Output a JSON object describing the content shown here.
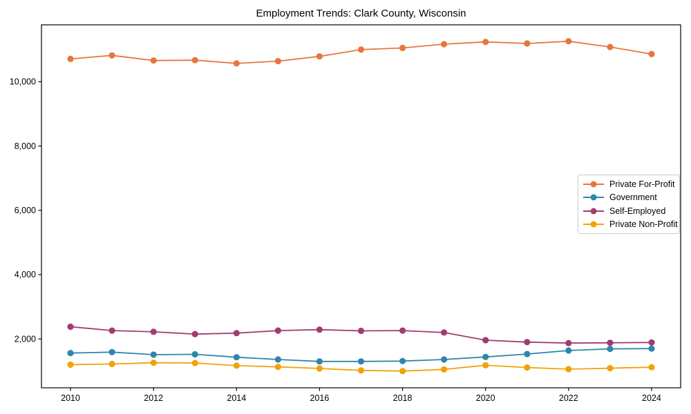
{
  "chart_data": {
    "type": "line",
    "title": "Employment Trends: Clark County, Wisconsin",
    "xlabel": "",
    "ylabel": "",
    "x": [
      2010,
      2011,
      2012,
      2013,
      2014,
      2015,
      2016,
      2017,
      2018,
      2019,
      2020,
      2021,
      2022,
      2023,
      2024
    ],
    "series": [
      {
        "name": "Private For-Profit",
        "color": "#E8763B",
        "values": [
          10710,
          10820,
          10660,
          10670,
          10570,
          10640,
          10790,
          11000,
          11050,
          11170,
          11240,
          11190,
          11260,
          11080,
          10860
        ]
      },
      {
        "name": "Government",
        "color": "#2E86AB",
        "values": [
          1560,
          1590,
          1510,
          1520,
          1430,
          1360,
          1300,
          1300,
          1310,
          1360,
          1440,
          1530,
          1640,
          1690,
          1700
        ]
      },
      {
        "name": "Self-Employed",
        "color": "#A23B72",
        "values": [
          2380,
          2260,
          2220,
          2150,
          2180,
          2260,
          2290,
          2250,
          2260,
          2200,
          1960,
          1900,
          1870,
          1880,
          1890
        ]
      },
      {
        "name": "Private Non-Profit",
        "color": "#F1A208",
        "values": [
          1200,
          1220,
          1260,
          1250,
          1170,
          1130,
          1080,
          1020,
          1000,
          1050,
          1180,
          1110,
          1060,
          1090,
          1120
        ]
      }
    ],
    "xticks": [
      2010,
      2012,
      2014,
      2016,
      2018,
      2020,
      2022,
      2024
    ],
    "xtick_labels": [
      "2010",
      "2012",
      "2014",
      "2016",
      "2018",
      "2020",
      "2022",
      "2024"
    ],
    "yticks": [
      2000,
      4000,
      6000,
      8000,
      10000
    ],
    "ytick_labels": [
      "2,000",
      "4,000",
      "6,000",
      "8,000",
      "10,000"
    ],
    "xlim": [
      2009.3,
      2024.7
    ],
    "ylim": [
      480,
      11770
    ],
    "grid": false,
    "legend": {
      "position": "center-right"
    },
    "colors": {
      "background": "#ffffff",
      "axis": "#000000",
      "legend_border": "#cccccc"
    }
  }
}
